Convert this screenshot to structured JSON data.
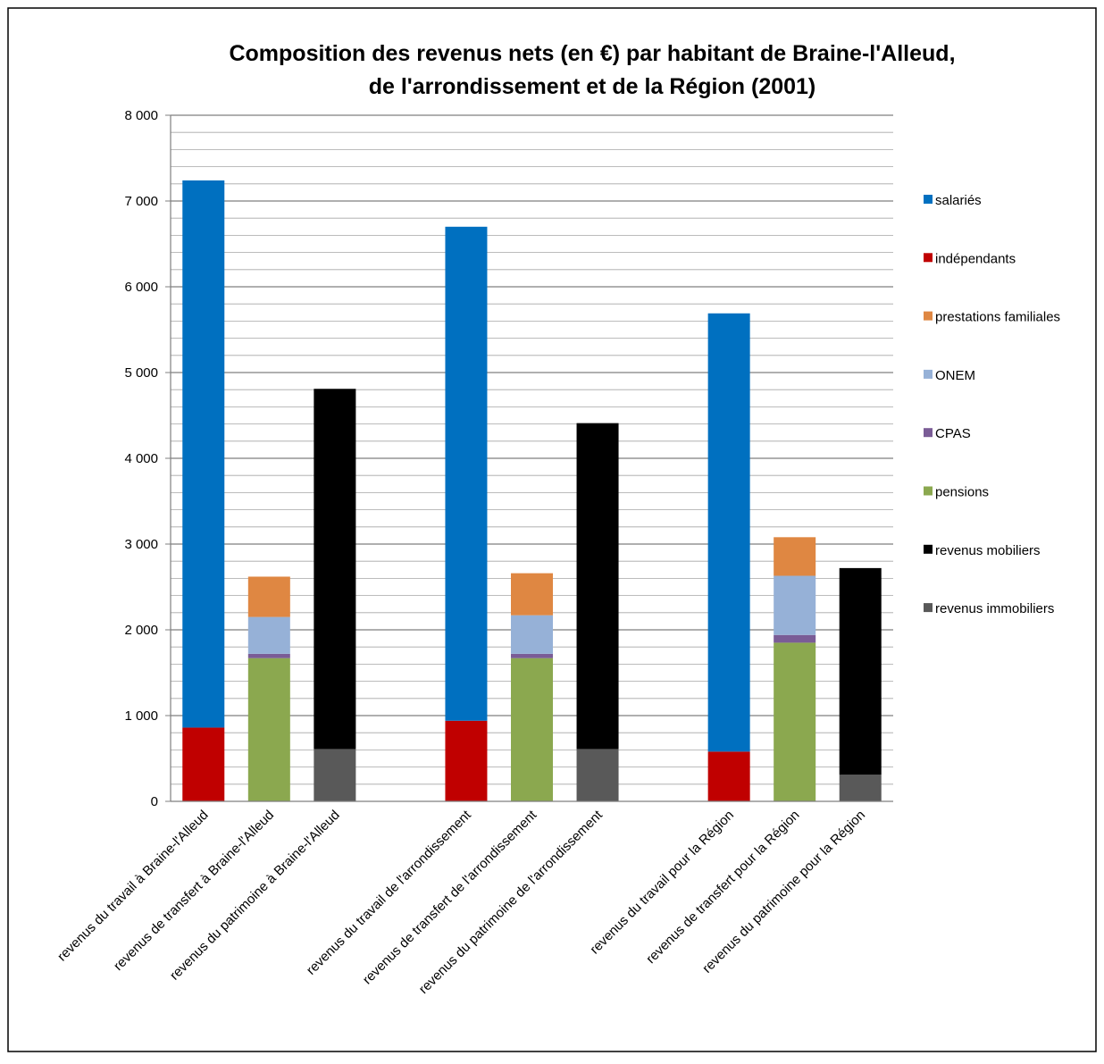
{
  "chart_data": {
    "type": "bar",
    "stacked": true,
    "title_lines": [
      "Composition des revenus nets (en €) par habitant de Braine-l'Alleud,",
      "de l'arrondissement et de la Région (2001)"
    ],
    "ylim": [
      0,
      8000
    ],
    "yticks": [
      {
        "value": 0,
        "label": "0"
      },
      {
        "value": 1000,
        "label": "1 000"
      },
      {
        "value": 2000,
        "label": "2 000"
      },
      {
        "value": 3000,
        "label": "3 000"
      },
      {
        "value": 4000,
        "label": "4 000"
      },
      {
        "value": 5000,
        "label": "5 000"
      },
      {
        "value": 6000,
        "label": "6 000"
      },
      {
        "value": 7000,
        "label": "7 000"
      },
      {
        "value": 8000,
        "label": "8 000"
      }
    ],
    "minor_gridline_step": 200,
    "grid": true,
    "legend_position": "right",
    "categories": [
      "revenus du travail à Braine-l'Alleud",
      "revenus de transfert à Braine-l'Alleud",
      "revenus du patrimoine à Braine-l'Alleud",
      "",
      "revenus du travail de l'arrondissement",
      "revenus de transfert de l'arrondissement",
      "revenus du patrimoine de l'arrondissement",
      "",
      "revenus du travail pour la Région",
      "revenus de transfert pour la Région",
      "revenus du patrimoine pour la Région"
    ],
    "series": [
      {
        "name": "revenus immobiliers",
        "color": "#595959",
        "values": [
          0,
          0,
          610,
          0,
          0,
          0,
          610,
          0,
          0,
          0,
          310
        ]
      },
      {
        "name": "revenus mobiliers",
        "color": "#000000",
        "values": [
          0,
          0,
          4200,
          0,
          0,
          0,
          3800,
          0,
          0,
          0,
          2410
        ]
      },
      {
        "name": "pensions",
        "color": "#8BA84F",
        "values": [
          0,
          1670,
          0,
          0,
          0,
          1670,
          0,
          0,
          0,
          1850,
          0
        ]
      },
      {
        "name": "CPAS",
        "color": "#7A5C96",
        "values": [
          0,
          50,
          0,
          0,
          0,
          50,
          0,
          0,
          0,
          90,
          0
        ]
      },
      {
        "name": "ONEM",
        "color": "#96B1D7",
        "values": [
          0,
          430,
          0,
          0,
          0,
          450,
          0,
          0,
          0,
          690,
          0
        ]
      },
      {
        "name": "prestations familiales",
        "color": "#DF8742",
        "values": [
          0,
          470,
          0,
          0,
          0,
          490,
          0,
          0,
          0,
          450,
          0
        ]
      },
      {
        "name": "indépendants",
        "color": "#C00000",
        "values": [
          860,
          0,
          0,
          0,
          940,
          0,
          0,
          0,
          580,
          0,
          0
        ]
      },
      {
        "name": "salariés",
        "color": "#0070C0",
        "values": [
          6380,
          0,
          0,
          0,
          5760,
          0,
          0,
          0,
          5110,
          0,
          0
        ]
      }
    ],
    "legend_order": [
      "salariés",
      "indépendants",
      "prestations familiales",
      "ONEM",
      "CPAS",
      "pensions",
      "revenus mobiliers",
      "revenus immobiliers"
    ]
  }
}
